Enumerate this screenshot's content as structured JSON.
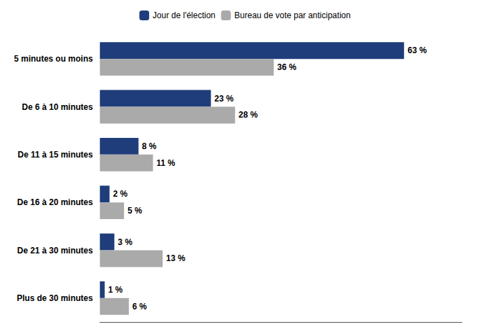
{
  "chart_data": {
    "type": "bar",
    "orientation": "horizontal",
    "categories": [
      "5 minutes ou moins",
      "De 6 à 10 minutes",
      "De 11 à 15 minutes",
      "De 16 à 20 minutes",
      "De 21 à 30 minutes",
      "Plus de 30 minutes"
    ],
    "series": [
      {
        "name": "Jour de l'élection",
        "color": "#1F3D7A",
        "values": [
          63,
          23,
          8,
          2,
          3,
          1
        ],
        "value_labels": [
          "63 %",
          "23 %",
          "8 %",
          "2 %",
          "3 %",
          "1 %"
        ]
      },
      {
        "name": "Bureau de vote par anticipation",
        "color": "#AAAAAA",
        "values": [
          36,
          28,
          11,
          5,
          13,
          6
        ],
        "value_labels": [
          "36 %",
          "28 %",
          "11 %",
          "5 %",
          "13 %",
          "6 %"
        ]
      }
    ],
    "xlim": [
      0,
      75
    ],
    "tick_labels": "y",
    "grid": false,
    "legend": "top",
    "data_labels": true
  }
}
